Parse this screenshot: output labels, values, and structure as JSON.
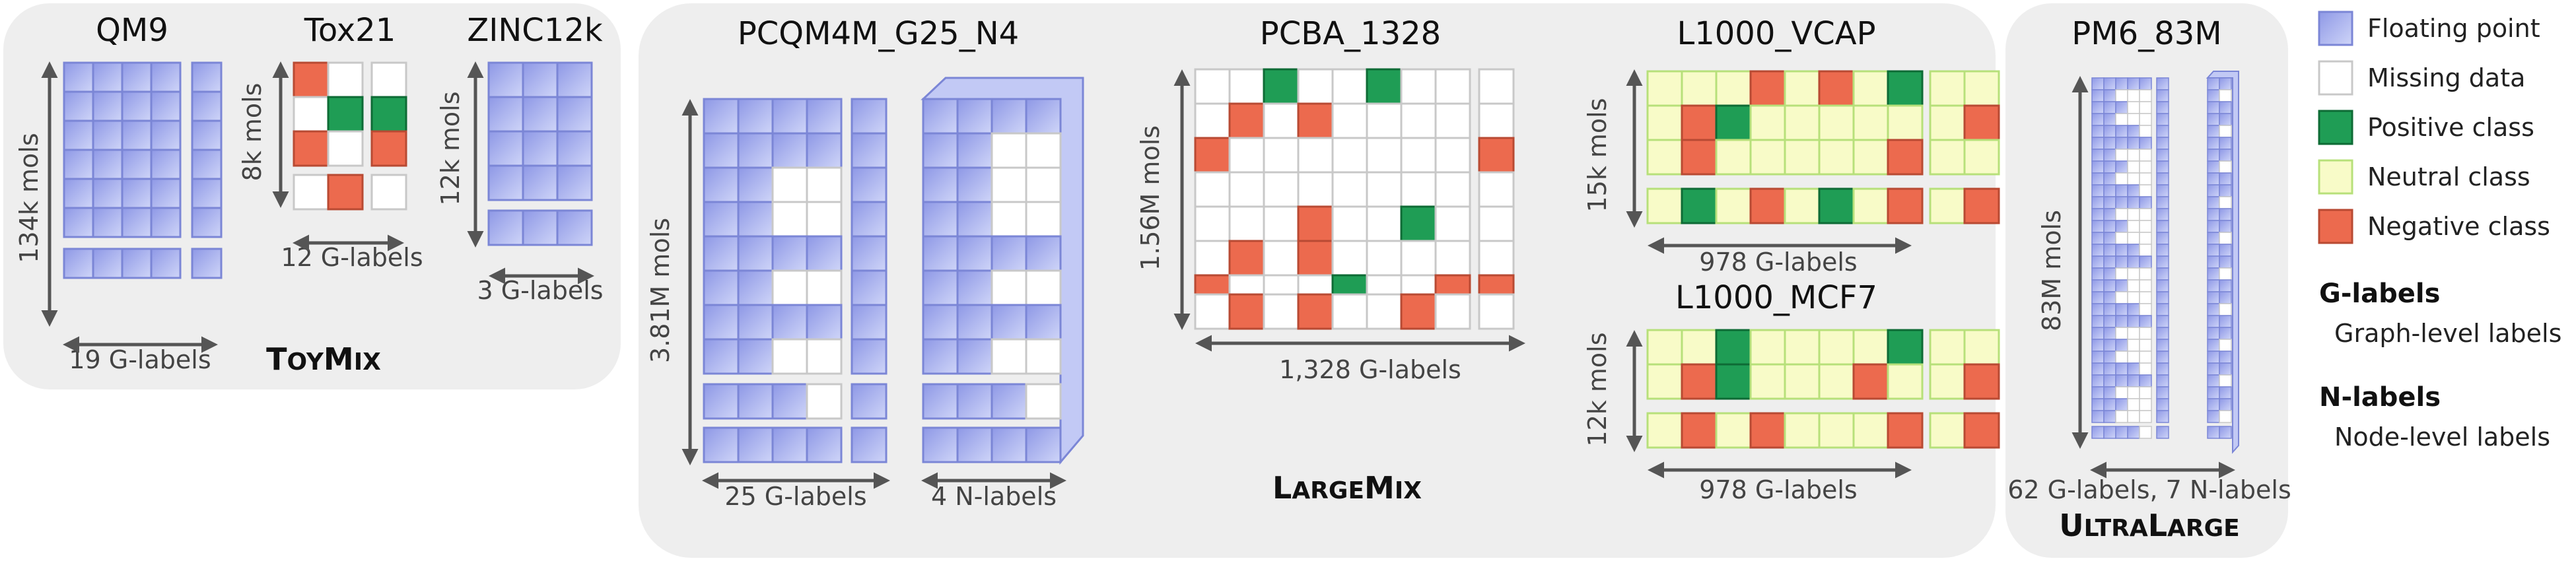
{
  "colors": {
    "panel": "#eeeeee",
    "float_fill": "#a9b2ef",
    "float_stroke": "#7b86d6",
    "float_side": "#c2c9f5",
    "missing_fill": "#ffffff",
    "missing_stroke": "#c8c8c8",
    "positive_fill": "#1f9d55",
    "positive_stroke": "#0e6b35",
    "neutral_fill": "#f8fbc8",
    "neutral_stroke": "#b7e07a",
    "negative_fill": "#ec6a4e",
    "negative_stroke": "#b84a33"
  },
  "groups": {
    "toymix": {
      "big": "T",
      "rest1": "OY",
      "big2": "M",
      "rest2": "IX"
    },
    "largemix": {
      "big": "L",
      "rest1": "ARGE",
      "big2": "M",
      "rest2": "IX"
    },
    "ultralarge": {
      "big": "U",
      "rest1": "LTRA",
      "big2": "L",
      "rest2": "ARGE"
    }
  },
  "datasets": {
    "qm9": {
      "title": "QM9",
      "rows_label": "134k mols",
      "cols_label": "19 G-labels"
    },
    "tox21": {
      "title": "Tox21",
      "rows_label": "8k mols",
      "cols_label": "12 G-labels"
    },
    "zinc": {
      "title": "ZINC12k",
      "rows_label": "12k mols",
      "cols_label": "3 G-labels"
    },
    "pcqm": {
      "title": "PCQM4M_G25_N4",
      "rows_label": "3.81M mols",
      "cols_label_g": "25 G-labels",
      "cols_label_n": "4 N-labels"
    },
    "pcba": {
      "title": "PCBA_1328",
      "rows_label": "1.56M mols",
      "cols_label": "1,328 G-labels"
    },
    "vcap": {
      "title": "L1000_VCAP",
      "rows_label": "15k mols",
      "cols_label": "978 G-labels"
    },
    "mcf7": {
      "title": "L1000_MCF7",
      "rows_label": "12k mols",
      "cols_label": "978 G-labels"
    },
    "pm6": {
      "title": "PM6_83M",
      "rows_label": "83M mols",
      "cols_label": "62 G-labels, 7 N-labels"
    }
  },
  "legend": {
    "items": [
      {
        "key": "float",
        "label": "Floating point"
      },
      {
        "key": "missing",
        "label": "Missing data"
      },
      {
        "key": "positive",
        "label": "Positive class"
      },
      {
        "key": "neutral",
        "label": "Neutral class"
      },
      {
        "key": "negative",
        "label": "Negative class"
      }
    ],
    "glabels_term": "G-labels",
    "glabels_desc": "Graph-level labels",
    "nlabels_term": "N-labels",
    "nlabels_desc": "Node-level labels"
  }
}
